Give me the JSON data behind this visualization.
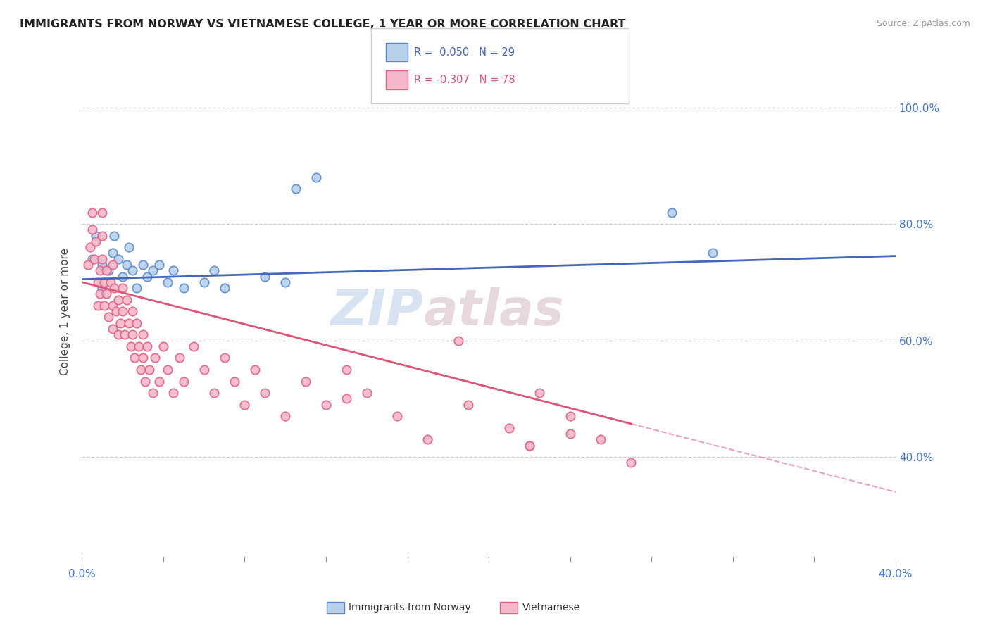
{
  "title": "IMMIGRANTS FROM NORWAY VS VIETNAMESE COLLEGE, 1 YEAR OR MORE CORRELATION CHART",
  "source_text": "Source: ZipAtlas.com",
  "ylabel": "College, 1 year or more",
  "xlim": [
    0.0,
    0.4
  ],
  "ylim": [
    0.22,
    1.08
  ],
  "ytick_labels_right": [
    "100.0%",
    "80.0%",
    "60.0%",
    "40.0%"
  ],
  "ytick_values_right": [
    1.0,
    0.8,
    0.6,
    0.4
  ],
  "color_norway": "#b8d0eb",
  "color_norwegian_edge": "#5588cc",
  "color_vietnamese": "#f5b8cb",
  "color_vietnamese_edge": "#e06080",
  "color_norway_line": "#4466bb",
  "color_vietnamese_line": "#dd5577",
  "background_color": "#ffffff",
  "grid_color": "#cccccc",
  "norway_x": [
    0.005,
    0.007,
    0.01,
    0.01,
    0.013,
    0.015,
    0.016,
    0.018,
    0.02,
    0.022,
    0.023,
    0.025,
    0.027,
    0.03,
    0.032,
    0.035,
    0.038,
    0.042,
    0.045,
    0.05,
    0.06,
    0.065,
    0.07,
    0.09,
    0.1,
    0.105,
    0.115,
    0.29,
    0.31
  ],
  "norway_y": [
    0.74,
    0.78,
    0.73,
    0.69,
    0.72,
    0.75,
    0.78,
    0.74,
    0.71,
    0.73,
    0.76,
    0.72,
    0.69,
    0.73,
    0.71,
    0.72,
    0.73,
    0.7,
    0.72,
    0.69,
    0.7,
    0.72,
    0.69,
    0.71,
    0.7,
    0.86,
    0.88,
    0.82,
    0.75
  ],
  "vietnamese_x": [
    0.003,
    0.004,
    0.005,
    0.005,
    0.006,
    0.007,
    0.008,
    0.008,
    0.009,
    0.009,
    0.01,
    0.01,
    0.01,
    0.011,
    0.011,
    0.012,
    0.012,
    0.013,
    0.014,
    0.015,
    0.015,
    0.015,
    0.016,
    0.017,
    0.018,
    0.018,
    0.019,
    0.02,
    0.02,
    0.021,
    0.022,
    0.023,
    0.024,
    0.025,
    0.025,
    0.026,
    0.027,
    0.028,
    0.029,
    0.03,
    0.03,
    0.031,
    0.032,
    0.033,
    0.035,
    0.036,
    0.038,
    0.04,
    0.042,
    0.045,
    0.048,
    0.05,
    0.055,
    0.06,
    0.065,
    0.07,
    0.075,
    0.08,
    0.085,
    0.09,
    0.1,
    0.11,
    0.12,
    0.13,
    0.14,
    0.155,
    0.17,
    0.19,
    0.21,
    0.225,
    0.24,
    0.255,
    0.27,
    0.185,
    0.13,
    0.22,
    0.24,
    0.22
  ],
  "vietnamese_y": [
    0.73,
    0.76,
    0.79,
    0.82,
    0.74,
    0.77,
    0.7,
    0.66,
    0.72,
    0.68,
    0.82,
    0.78,
    0.74,
    0.7,
    0.66,
    0.72,
    0.68,
    0.64,
    0.7,
    0.66,
    0.62,
    0.73,
    0.69,
    0.65,
    0.61,
    0.67,
    0.63,
    0.69,
    0.65,
    0.61,
    0.67,
    0.63,
    0.59,
    0.65,
    0.61,
    0.57,
    0.63,
    0.59,
    0.55,
    0.61,
    0.57,
    0.53,
    0.59,
    0.55,
    0.51,
    0.57,
    0.53,
    0.59,
    0.55,
    0.51,
    0.57,
    0.53,
    0.59,
    0.55,
    0.51,
    0.57,
    0.53,
    0.49,
    0.55,
    0.51,
    0.47,
    0.53,
    0.49,
    0.55,
    0.51,
    0.47,
    0.43,
    0.49,
    0.45,
    0.51,
    0.47,
    0.43,
    0.39,
    0.6,
    0.5,
    0.42,
    0.44,
    0.42
  ]
}
